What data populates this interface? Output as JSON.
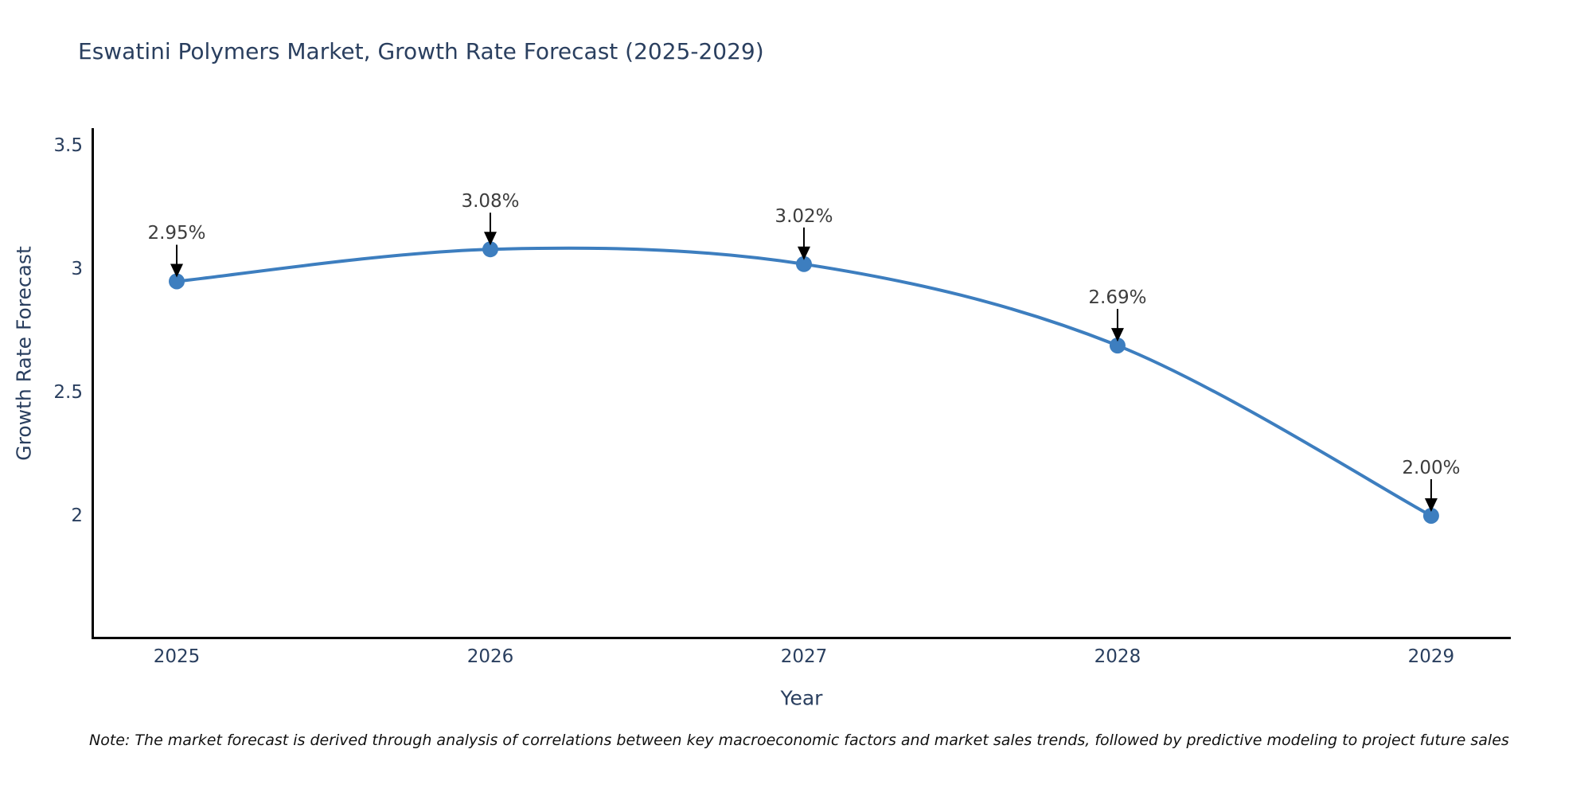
{
  "title": "Eswatini Polymers Market, Growth Rate Forecast (2025-2029)",
  "note": "Note: The market forecast is derived through analysis of correlations between key macroeconomic factors and market sales trends, followed by predictive modeling to project future sales",
  "colors": {
    "line": "#3d7ebf",
    "marker": "#3d7ebf",
    "title_text": "#2a3f5f",
    "tick_text": "#2a3f5f",
    "annotation_text": "#3d3d3d",
    "axis_line": "#000000",
    "arrow": "#000000"
  },
  "chart_data": {
    "type": "line",
    "line_shape": "spline",
    "title": "Eswatini Polymers Market, Growth Rate Forecast (2025-2029)",
    "xlabel": "Year",
    "ylabel": "Growth Rate Forecast",
    "x": [
      2025,
      2026,
      2027,
      2028,
      2029
    ],
    "y": [
      2.95,
      3.08,
      3.02,
      2.69,
      2.0
    ],
    "point_labels": [
      "2.95%",
      "3.08%",
      "3.02%",
      "2.69%",
      "2.00%"
    ],
    "xtick_labels": [
      "2025",
      "2026",
      "2027",
      "2028",
      "2029"
    ],
    "xtick_values": [
      2025,
      2026,
      2027,
      2028,
      2029
    ],
    "ytick_labels": [
      "3.5",
      "3",
      "2.5",
      "2"
    ],
    "ytick_values": [
      3.5,
      3.0,
      2.5,
      2.0
    ],
    "xlim": [
      2024.736,
      2029.254
    ],
    "ylim": [
      1.503,
      3.571
    ],
    "grid": false,
    "legend": "none",
    "marker_size": 20,
    "line_width": 4
  }
}
